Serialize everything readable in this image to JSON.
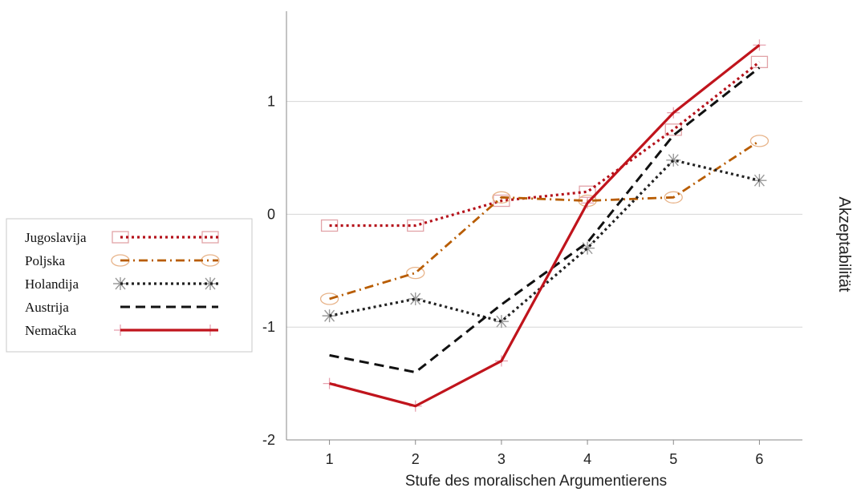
{
  "chart_data": {
    "type": "line",
    "xlabel": "Stufe des moralischen Argumentierens",
    "ylabel": "Akzeptabilität",
    "x": [
      1,
      2,
      3,
      4,
      5,
      6
    ],
    "xlim": [
      0.5,
      6.5
    ],
    "ylim": [
      -2,
      1.8
    ],
    "yticks": [
      -2,
      -1,
      0,
      1
    ],
    "grid": "horizontal",
    "legend_position": "left",
    "series": [
      {
        "name": "Jugoslavija",
        "values": [
          -0.1,
          -0.1,
          0.12,
          0.2,
          0.75,
          1.35
        ],
        "color": "#b5121b",
        "dash": "dotted",
        "marker": "square"
      },
      {
        "name": "Poljska",
        "values": [
          -0.75,
          -0.52,
          0.15,
          0.12,
          0.15,
          0.65
        ],
        "color": "#b85c00",
        "dash": "dashdot",
        "marker": "circle"
      },
      {
        "name": "Holandija",
        "values": [
          -0.9,
          -0.75,
          -0.95,
          -0.3,
          0.48,
          0.3
        ],
        "color": "#222222",
        "dash": "dotted",
        "marker": "asterisk"
      },
      {
        "name": "Austrija",
        "values": [
          -1.25,
          -1.4,
          -0.8,
          -0.25,
          0.7,
          1.3
        ],
        "color": "#111111",
        "dash": "dashed",
        "marker": "none"
      },
      {
        "name": "Nemačka",
        "values": [
          -1.5,
          -1.7,
          -1.3,
          0.1,
          0.9,
          1.5
        ],
        "color": "#c0141c",
        "dash": "solid",
        "marker": "plus"
      }
    ]
  }
}
